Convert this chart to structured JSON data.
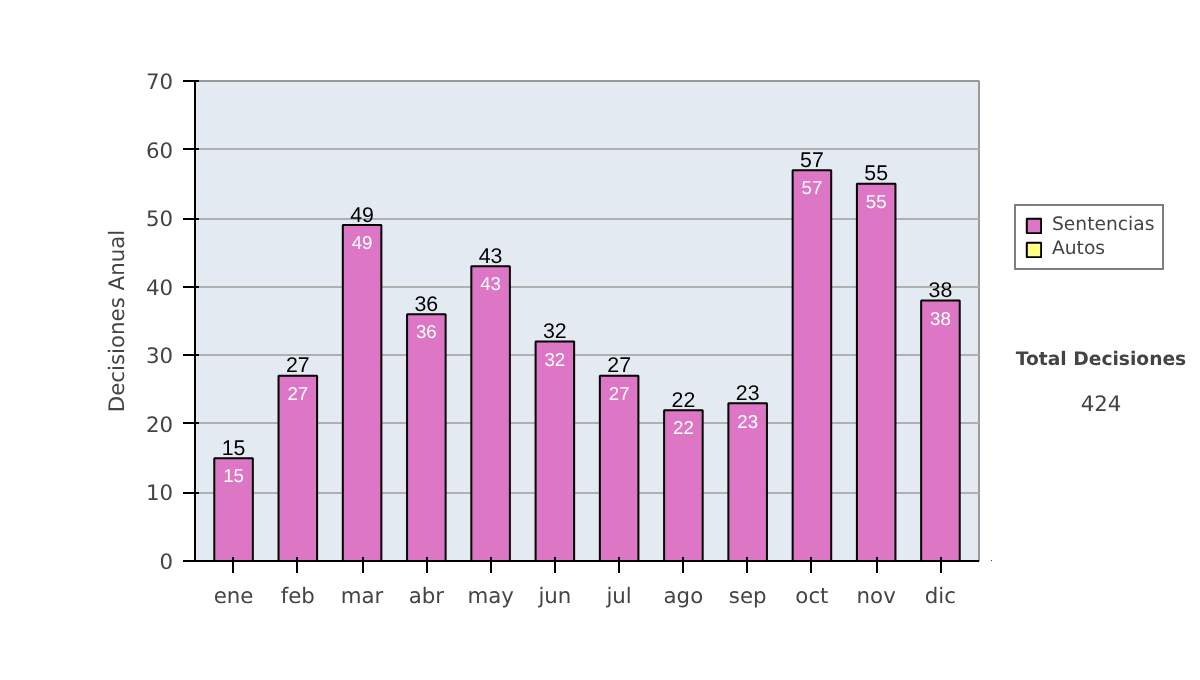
{
  "chart_data": {
    "type": "bar",
    "stacked": true,
    "ylabel": "Decisiones Anual",
    "categories": [
      "ene",
      "feb",
      "mar",
      "abr",
      "may",
      "jun",
      "jul",
      "ago",
      "sep",
      "oct",
      "nov",
      "dic"
    ],
    "series": [
      {
        "name": "Sentencias",
        "color": "#dd77c5",
        "values": [
          15,
          27,
          49,
          36,
          43,
          32,
          27,
          22,
          23,
          57,
          55,
          38
        ]
      },
      {
        "name": "Autos",
        "color": "#ffff88",
        "values": [
          null,
          null,
          null,
          null,
          null,
          null,
          null,
          null,
          null,
          null,
          null,
          null
        ]
      }
    ],
    "data_labels": true,
    "totals": [
      "15",
      "27",
      "49",
      "36",
      "43",
      "32",
      "27",
      "22",
      "23",
      "57",
      "55",
      "38"
    ],
    "ylim": [
      0,
      70
    ],
    "yticks": [
      0,
      10,
      20,
      30,
      40,
      50,
      60,
      70
    ],
    "grid": "y",
    "legend": "right",
    "annotations": [
      "Total Decisiones",
      "424"
    ]
  }
}
